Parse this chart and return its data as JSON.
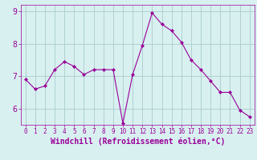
{
  "x": [
    0,
    1,
    2,
    3,
    4,
    5,
    6,
    7,
    8,
    9,
    10,
    11,
    12,
    13,
    14,
    15,
    16,
    17,
    18,
    19,
    20,
    21,
    22,
    23
  ],
  "y": [
    6.9,
    6.6,
    6.7,
    7.2,
    7.45,
    7.3,
    7.05,
    7.2,
    7.2,
    7.2,
    5.55,
    7.05,
    7.95,
    8.95,
    8.6,
    8.4,
    8.05,
    7.5,
    7.2,
    6.85,
    6.5,
    6.5,
    5.95,
    5.75
  ],
  "line_color": "#990099",
  "marker": "D",
  "marker_size": 2,
  "bg_color": "#d8f0f0",
  "grid_color": "#aacccc",
  "xlabel": "Windchill (Refroidissement éolien,°C)",
  "xlabel_color": "#990099",
  "ylim": [
    5.5,
    9.2
  ],
  "yticks": [
    6,
    7,
    8,
    9
  ],
  "xticks": [
    0,
    1,
    2,
    3,
    4,
    5,
    6,
    7,
    8,
    9,
    10,
    11,
    12,
    13,
    14,
    15,
    16,
    17,
    18,
    19,
    20,
    21,
    22,
    23
  ],
  "tick_color": "#990099",
  "tick_fontsize": 5.5,
  "ytick_fontsize": 7.0,
  "xlabel_fontsize": 7.0
}
